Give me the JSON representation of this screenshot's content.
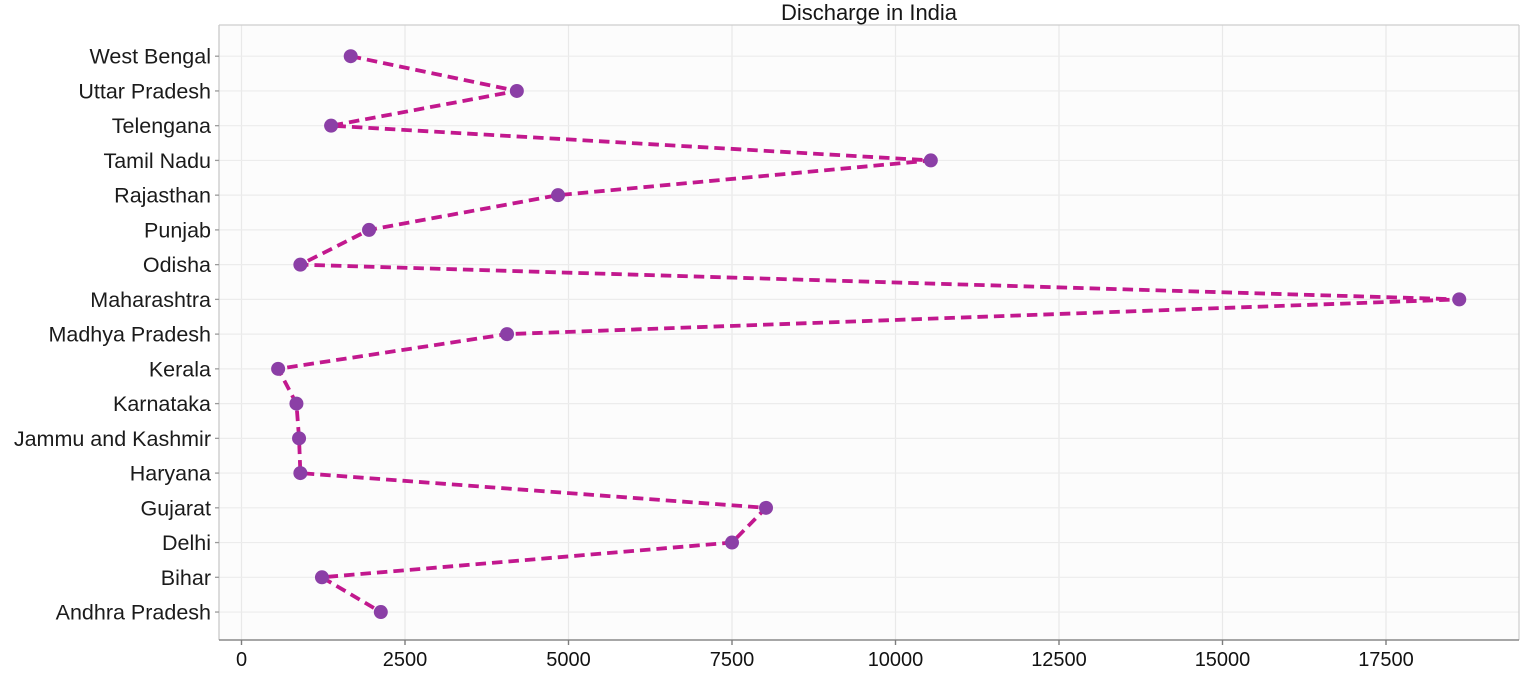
{
  "chart_data": {
    "type": "line",
    "orientation": "horizontal-categorical",
    "title": "Discharge in India",
    "categories": [
      "West Bengal",
      "Uttar Pradesh",
      "Telengana",
      "Tamil Nadu",
      "Rajasthan",
      "Punjab",
      "Odisha",
      "Maharashtra",
      "Madhya Pradesh",
      "Kerala",
      "Karnataka",
      "Jammu and Kashmir",
      "Haryana",
      "Gujarat",
      "Delhi",
      "Bihar",
      "Andhra Pradesh"
    ],
    "values": [
      1670,
      4210,
      1370,
      10540,
      4840,
      1950,
      900,
      18620,
      4060,
      560,
      840,
      880,
      900,
      8020,
      7500,
      1230,
      2130
    ],
    "x_ticks": [
      0,
      2500,
      5000,
      7500,
      10000,
      12500,
      15000,
      17500
    ],
    "xlim": [
      0,
      19540
    ],
    "grid": true,
    "legend": "none",
    "line_style": "dashed",
    "line_color": "#c2188e",
    "marker": "circle",
    "marker_color": "#8b3fa6"
  }
}
